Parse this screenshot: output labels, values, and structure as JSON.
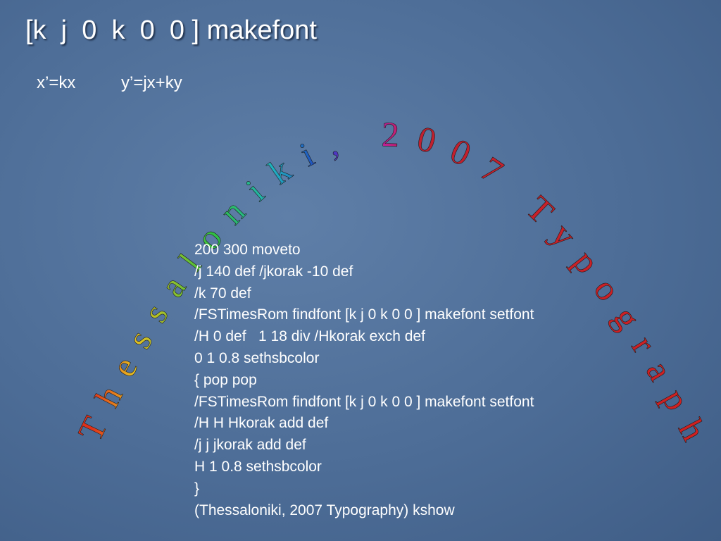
{
  "slide": {
    "title": "[k  j  0  k  0  0 ] makefont",
    "formula_x": "x’=kx",
    "formula_y": "y’=jx+ky",
    "arc_text": "Thessaloniki, 2007 Typography",
    "code_lines": [
      "200 300 moveto",
      "/j 140 def /jkorak -10 def",
      "/k 70 def",
      "/FSTimesRom findfont [k j 0 k 0 0 ] makefont setfont",
      "/H 0 def   1 18 div /Hkorak exch def",
      "0 1 0.8 sethsbcolor",
      "{ pop pop",
      "/FSTimesRom findfont [k j 0 k 0 0 ] makefont setfont",
      "/H H Hkorak add def",
      "/j j jkorak add def",
      "H 1 0.8 sethsbcolor",
      "}",
      "(Thessaloniki, 2007 Typography) kshow"
    ]
  }
}
